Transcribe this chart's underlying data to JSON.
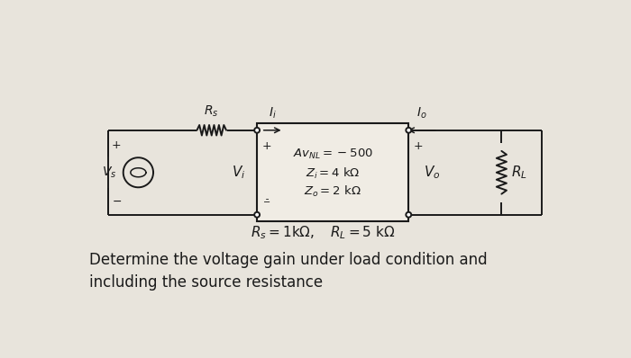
{
  "bg_color": "#e8e4dc",
  "box_facecolor": "#f0ece4",
  "line_color": "#1a1a1a",
  "text_color": "#1a1a1a",
  "bottom_text_1": "Determine the voltage gain under load condition and",
  "bottom_text_2": "including the source resistance",
  "avnl_text": "$Av_{NL} = -500$",
  "zi_text": "$Z_i = 4 \\ \\mathrm{k\\Omega}$",
  "zo_text": "$Z_o = 2 \\ \\mathrm{k\\Omega}$",
  "rs_val_text": "$R_s = 1 \\mathrm{k\\Omega}$",
  "rl_val_text": "$R_L = 5 \\ \\mathrm{k\\Omega}$"
}
